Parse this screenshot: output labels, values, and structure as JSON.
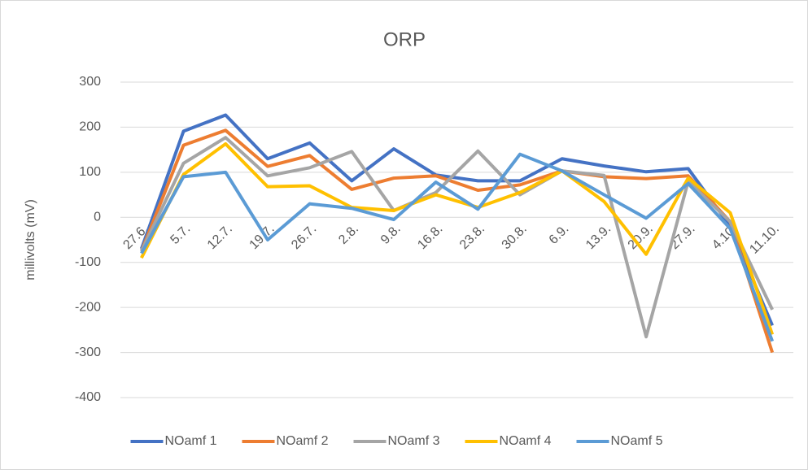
{
  "chart_data": {
    "type": "line",
    "title": "ORP",
    "y_label": "millivolts (mV)",
    "categories": [
      "27.6.",
      "5.7.",
      "12.7.",
      "19.7.",
      "26.7.",
      "2.8.",
      "9.8.",
      "16.8.",
      "23.8.",
      "30.8.",
      "6.9.",
      "13.9.",
      "20.9.",
      "27.9.",
      "4.10.",
      "11.10."
    ],
    "series": [
      {
        "name": "NOamf 1",
        "color": "#4472c4",
        "values": [
          -70,
          191,
          227,
          130,
          165,
          81,
          152,
          94,
          81,
          81,
          130,
          114,
          101,
          108,
          -20,
          -240
        ]
      },
      {
        "name": "NOamf 2",
        "color": "#ed7d31",
        "values": [
          -75,
          160,
          193,
          113,
          137,
          62,
          87,
          92,
          60,
          72,
          103,
          90,
          86,
          92,
          -10,
          -300
        ]
      },
      {
        "name": "NOamf 3",
        "color": "#a5a5a5",
        "values": [
          -75,
          120,
          177,
          92,
          110,
          146,
          15,
          55,
          147,
          50,
          103,
          93,
          -265,
          80,
          -10,
          -205
        ]
      },
      {
        "name": "NOamf 4",
        "color": "#ffc000",
        "values": [
          -90,
          95,
          163,
          68,
          70,
          22,
          15,
          50,
          22,
          55,
          103,
          35,
          -82,
          87,
          10,
          -260
        ]
      },
      {
        "name": "NOamf 5",
        "color": "#5b9bd5",
        "values": [
          -80,
          90,
          100,
          -50,
          30,
          20,
          -5,
          78,
          18,
          140,
          103,
          50,
          -2,
          75,
          -25,
          -275
        ]
      }
    ],
    "ylim": [
      -400,
      300
    ],
    "yticks": [
      -400,
      -300,
      -200,
      -100,
      0,
      100,
      200,
      300
    ],
    "grid": true,
    "legend": "bottom"
  }
}
